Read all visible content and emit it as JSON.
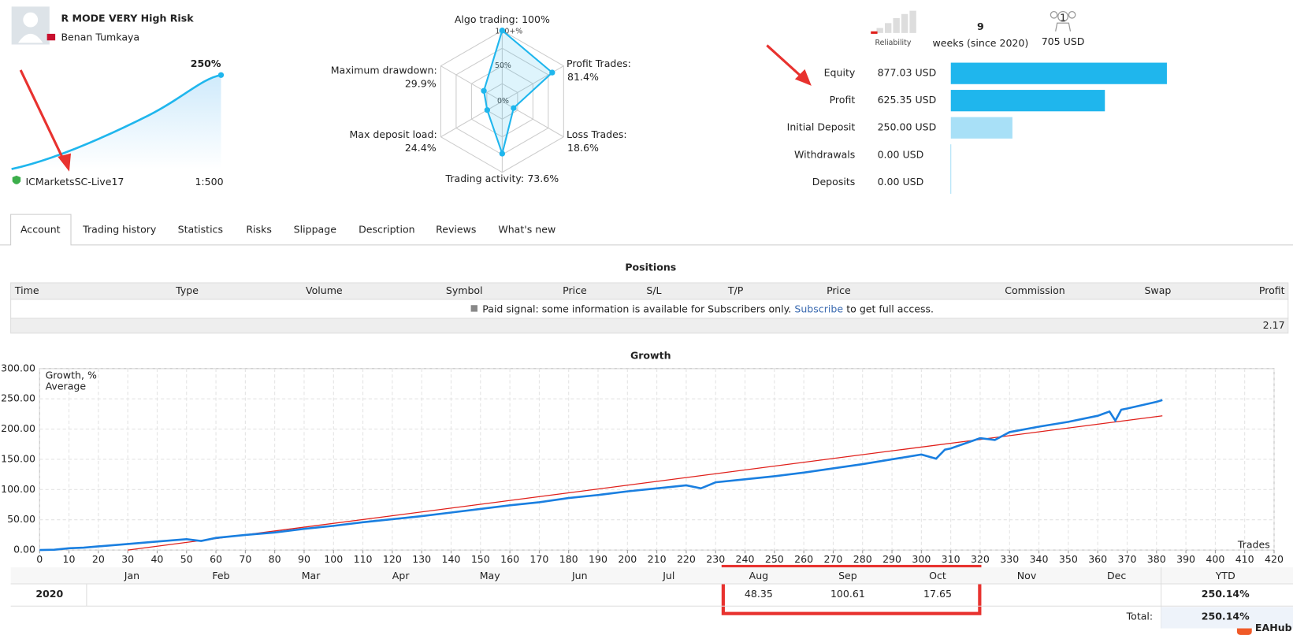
{
  "header": {
    "title": "R MODE VERY High Risk",
    "author": "Benan Tumkaya",
    "growth": "250%",
    "server": "ICMarketsSC-Live17",
    "leverage": "1:500"
  },
  "radar": {
    "scale_labels": [
      "100+%",
      "50%",
      "0%"
    ],
    "axes": [
      {
        "name": "Algo trading:",
        "value": 100,
        "value_label": "100%"
      },
      {
        "name": "Profit Trades:",
        "value": 81.4,
        "value_label": "81.4%"
      },
      {
        "name": "Loss Trades:",
        "value": 18.6,
        "value_label": "18.6%"
      },
      {
        "name": "Trading activity:",
        "value": 73.6,
        "value_label": "73.6%"
      },
      {
        "name": "Max deposit load:",
        "value": 24.4,
        "value_label": "24.4%"
      },
      {
        "name": "Maximum drawdown:",
        "value": 29.9,
        "value_label": "29.9%"
      }
    ],
    "color": "#1fb6ed"
  },
  "summary": {
    "reliability": "Reliability",
    "weeks": "9",
    "weeks_label": "weeks (since 2020)",
    "subscribers": "1",
    "funds": "705 USD"
  },
  "balance": {
    "rows": [
      {
        "name": "Equity",
        "value": 877.03,
        "value_label": "877.03 USD",
        "color": "#1fb6ed"
      },
      {
        "name": "Profit",
        "value": 625.35,
        "value_label": "625.35 USD",
        "color": "#1fb6ed"
      },
      {
        "name": "Initial Deposit",
        "value": 250.0,
        "value_label": "250.00 USD",
        "color": "#a8e0f7"
      },
      {
        "name": "Withdrawals",
        "value": 0,
        "value_label": "0.00 USD",
        "color": "#1fb6ed"
      },
      {
        "name": "Deposits",
        "value": 0,
        "value_label": "0.00 USD",
        "color": "#1fb6ed"
      }
    ]
  },
  "tabs": [
    "Account",
    "Trading history",
    "Statistics",
    "Risks",
    "Slippage",
    "Description",
    "Reviews",
    "What's new"
  ],
  "positions": {
    "title": "Positions",
    "columns": [
      "Time",
      "Type",
      "Volume",
      "Symbol",
      "Price",
      "S/L",
      "T/P",
      "Price",
      "Commission",
      "Swap",
      "Profit"
    ],
    "notice": [
      "Paid signal: some information is available for Subscribers only.",
      "Subscribe",
      "to get full access."
    ],
    "total": "2.17"
  },
  "growth": {
    "type": "line",
    "title": "Growth",
    "x_label": "Trades",
    "xlim": [
      0,
      420
    ],
    "xticks": [
      0,
      10,
      20,
      30,
      40,
      50,
      60,
      70,
      80,
      90,
      100,
      110,
      120,
      130,
      140,
      150,
      160,
      170,
      180,
      190,
      200,
      210,
      220,
      230,
      240,
      250,
      260,
      270,
      280,
      290,
      300,
      310,
      320,
      330,
      340,
      350,
      360,
      370,
      380,
      390,
      400,
      410,
      420
    ],
    "ylim": [
      0,
      300
    ],
    "yticks": [
      {
        "value": 0,
        "label": "0.00"
      },
      {
        "value": 50,
        "label": "50.00"
      },
      {
        "value": 100,
        "label": "100.00"
      },
      {
        "value": 150,
        "label": "150.00"
      },
      {
        "value": 200,
        "label": "200.00"
      },
      {
        "value": 250,
        "label": "250.00"
      },
      {
        "value": 300,
        "label": "300.00"
      }
    ],
    "grid": true,
    "series": [
      {
        "name": "Growth, %",
        "color": "#1a7fe0",
        "x": [
          0,
          5,
          10,
          15,
          20,
          30,
          40,
          45,
          50,
          55,
          60,
          70,
          80,
          90,
          100,
          110,
          120,
          130,
          140,
          150,
          160,
          170,
          180,
          190,
          200,
          210,
          220,
          225,
          230,
          240,
          250,
          260,
          270,
          280,
          290,
          300,
          305,
          308,
          310,
          320,
          325,
          330,
          340,
          350,
          360,
          364,
          366,
          368,
          370,
          380,
          382
        ],
        "values": [
          0,
          0.5,
          3,
          4,
          6,
          10,
          14,
          16,
          18,
          15,
          20,
          25,
          29,
          35,
          40,
          46,
          51,
          56,
          62,
          68,
          74,
          79,
          86,
          91,
          97,
          102,
          107,
          102,
          112,
          117,
          122,
          128,
          135,
          142,
          150,
          158,
          151,
          166,
          168,
          185,
          182,
          195,
          204,
          212,
          222,
          229,
          214,
          232,
          234,
          245,
          248
        ]
      },
      {
        "name": "Average",
        "color": "#e0201b",
        "x": [
          30,
          382
        ],
        "values": [
          0,
          222
        ]
      }
    ]
  },
  "monthly": {
    "months": [
      "Jan",
      "Feb",
      "Mar",
      "Apr",
      "May",
      "Jun",
      "Jul",
      "Aug",
      "Sep",
      "Oct",
      "Nov",
      "Dec"
    ],
    "ytd_header": "YTD",
    "rows": [
      {
        "year": "2020",
        "values": [
          null,
          null,
          null,
          null,
          null,
          null,
          null,
          "48.35",
          "100.61",
          "17.65",
          null,
          null
        ],
        "ytd": "250.14%"
      }
    ],
    "total_label": "Total:",
    "total": "250.14%"
  },
  "watermark": "EAHub"
}
